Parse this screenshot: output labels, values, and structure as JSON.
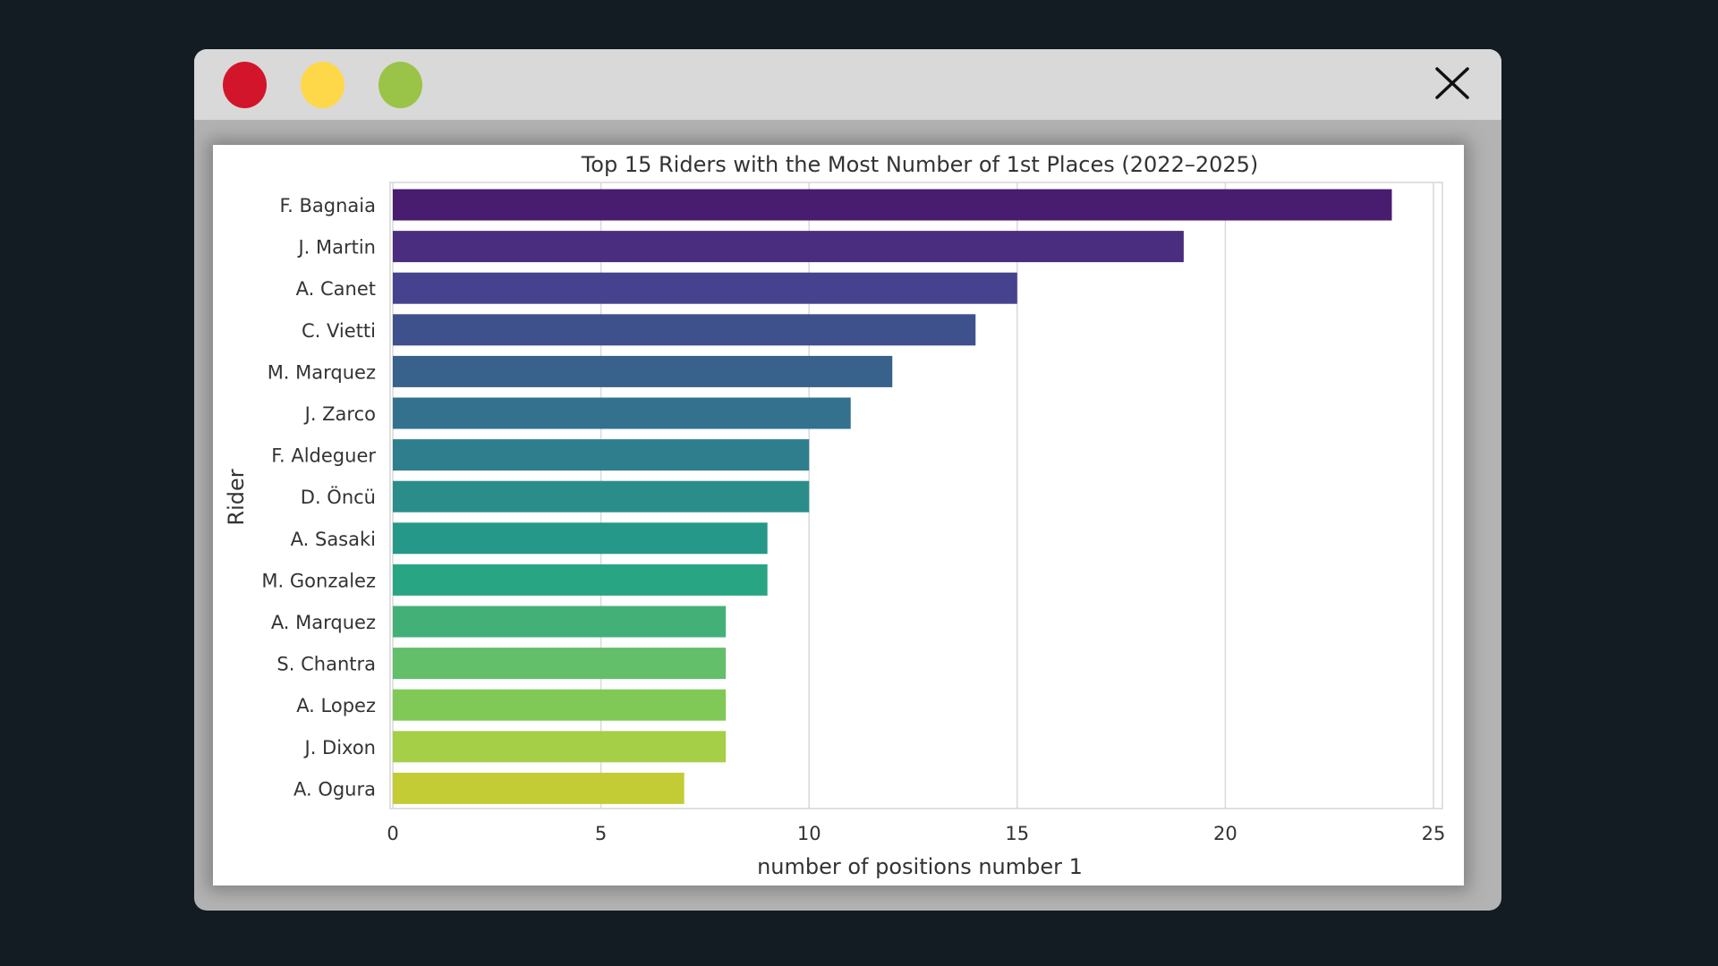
{
  "window": {
    "controls": {
      "close_color": "#d2152a",
      "minimize_color": "#ffd84a",
      "maximize_color": "#99c447"
    },
    "close_icon": "close-icon"
  },
  "chart_data": {
    "type": "bar",
    "orientation": "horizontal",
    "title": "Top 15 Riders with the Most Number of 1st Places (2022–2025)",
    "xlabel": "number of positions number 1",
    "ylabel": "Rider",
    "xlim": [
      0,
      25
    ],
    "xticks": [
      0,
      5,
      10,
      15,
      20,
      25
    ],
    "grid": "vertical",
    "categories": [
      "F. Bagnaia",
      "J. Martin",
      "A. Canet",
      "C. Vietti",
      "M. Marquez",
      "J. Zarco",
      "F. Aldeguer",
      "D. Öncü",
      "A. Sasaki",
      "M. Gonzalez",
      "A. Marquez",
      "S. Chantra",
      "A. Lopez",
      "J. Dixon",
      "A. Ogura"
    ],
    "values": [
      24,
      19,
      15,
      14,
      12,
      11,
      10,
      10,
      9,
      9,
      8,
      8,
      8,
      8,
      7
    ],
    "colors": [
      "#481c6e",
      "#4b2d7f",
      "#46428d",
      "#3f518c",
      "#38618c",
      "#33718e",
      "#2f7e8e",
      "#2a8d8a",
      "#26988a",
      "#28a583",
      "#43b077",
      "#63bf6a",
      "#80c957",
      "#a5cf47",
      "#c3cc34"
    ]
  }
}
